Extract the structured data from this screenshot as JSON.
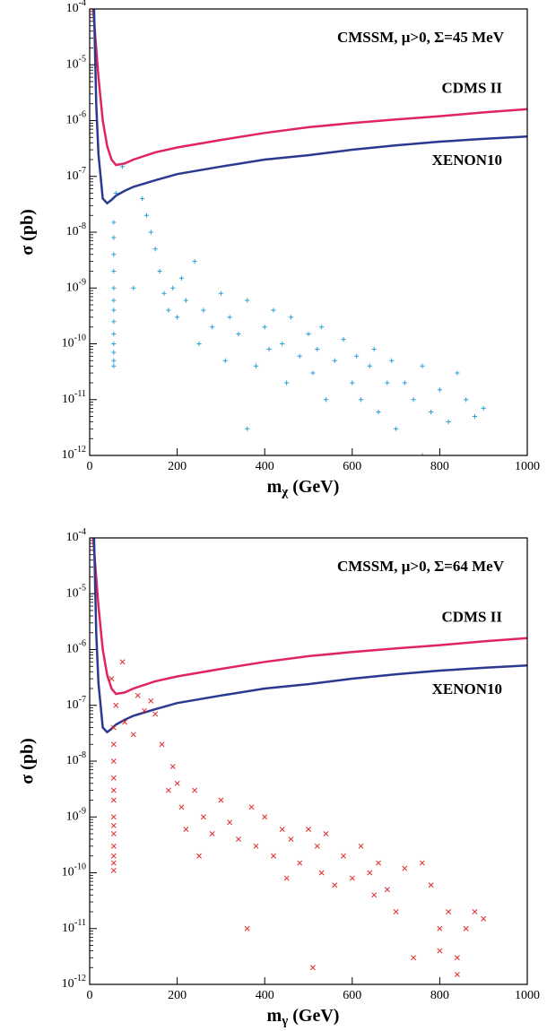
{
  "chart_data": [
    {
      "type": "scatter",
      "title": "CMSSM, μ>0, Σ=45 MeV",
      "xlabel": "mχ (GeV)",
      "ylabel": "σ (pb)",
      "log_y": true,
      "xlim": [
        0,
        1000
      ],
      "xticks": [
        0,
        200,
        400,
        600,
        800,
        1000
      ],
      "ylim": [
        1e-12,
        0.0001
      ],
      "yticks": [
        {
          "value": 1e-12,
          "label": "10-12"
        },
        {
          "value": 1e-11,
          "label": "10-11"
        },
        {
          "value": 1e-10,
          "label": "10-10"
        },
        {
          "value": 1e-09,
          "label": "10-9"
        },
        {
          "value": 1e-08,
          "label": "10-8"
        },
        {
          "value": 1e-07,
          "label": "10-7"
        },
        {
          "value": 1e-06,
          "label": "10-6"
        },
        {
          "value": 1e-05,
          "label": "10-5"
        },
        {
          "value": 0.0001,
          "label": "10-4"
        }
      ],
      "series": [
        {
          "name": "CDMS II",
          "kind": "line",
          "color": "#e0245e",
          "x": [
            8,
            20,
            30,
            40,
            50,
            60,
            80,
            100,
            150,
            200,
            300,
            400,
            500,
            600,
            700,
            800,
            900,
            1000
          ],
          "values": [
            0.0001,
            6e-06,
            1e-06,
            3.5e-07,
            2e-07,
            1.6e-07,
            1.7e-07,
            2e-07,
            2.7e-07,
            3.3e-07,
            4.5e-07,
            6e-07,
            7.6e-07,
            9e-07,
            1.05e-06,
            1.2e-06,
            1.4e-06,
            1.6e-06
          ]
        },
        {
          "name": "XENON10",
          "kind": "line",
          "color": "#2b3990",
          "x": [
            10,
            15,
            20,
            30,
            40,
            50,
            60,
            80,
            100,
            150,
            200,
            300,
            400,
            500,
            600,
            700,
            800,
            900,
            1000
          ],
          "values": [
            0.0001,
            2e-06,
            2.5e-07,
            4e-08,
            3.3e-08,
            3.8e-08,
            4.5e-08,
            5.5e-08,
            6.5e-08,
            8.5e-08,
            1.1e-07,
            1.5e-07,
            2e-07,
            2.4e-07,
            3e-07,
            3.6e-07,
            4.2e-07,
            4.7e-07,
            5.2e-07
          ]
        },
        {
          "kind": "points",
          "marker": "+",
          "color": "#2aa0d8",
          "x": [
            55,
            55,
            55,
            55,
            55,
            55,
            55,
            55,
            55,
            55,
            55,
            55,
            55,
            60,
            75,
            100,
            120,
            130,
            140,
            150,
            160,
            170,
            180,
            190,
            200,
            210,
            220,
            240,
            250,
            260,
            280,
            300,
            310,
            320,
            340,
            360,
            360,
            380,
            400,
            410,
            420,
            440,
            450,
            460,
            480,
            500,
            510,
            520,
            530,
            540,
            560,
            580,
            600,
            610,
            620,
            640,
            650,
            660,
            680,
            690,
            700,
            720,
            740,
            760,
            760,
            780,
            800,
            820,
            840,
            860,
            880,
            900
          ],
          "values": [
            1.5e-08,
            8e-09,
            4e-09,
            2e-09,
            1e-09,
            6e-10,
            4e-10,
            2.5e-10,
            1.5e-10,
            1e-10,
            7e-11,
            5e-11,
            4e-11,
            5e-08,
            1.5e-07,
            1e-09,
            4e-08,
            2e-08,
            1e-08,
            5e-09,
            2e-09,
            8e-10,
            4e-10,
            1e-09,
            3e-10,
            1.5e-09,
            6e-10,
            3e-09,
            1e-10,
            4e-10,
            2e-10,
            8e-10,
            5e-11,
            3e-10,
            1.5e-10,
            3e-12,
            6e-10,
            4e-11,
            2e-10,
            8e-11,
            4e-10,
            1e-10,
            2e-11,
            3e-10,
            6e-11,
            1.5e-10,
            3e-11,
            8e-11,
            2e-10,
            1e-11,
            5e-11,
            1.2e-10,
            2e-11,
            6e-11,
            1e-11,
            4e-11,
            8e-11,
            6e-12,
            2e-11,
            5e-11,
            3e-12,
            2e-11,
            1e-11,
            4e-11,
            1e-12,
            6e-12,
            1.5e-11,
            4e-12,
            3e-11,
            1e-11,
            5e-12,
            7e-12
          ]
        }
      ]
    },
    {
      "type": "scatter",
      "title": "CMSSM, μ>0, Σ=64 MeV",
      "xlabel": "mγ (GeV)",
      "ylabel": "σ (pb)",
      "log_y": true,
      "xlim": [
        0,
        1000
      ],
      "xticks": [
        0,
        200,
        400,
        600,
        800,
        1000
      ],
      "ylim": [
        1e-12,
        0.0001
      ],
      "yticks": [
        {
          "value": 1e-12,
          "label": "10-12"
        },
        {
          "value": 1e-11,
          "label": "10-11"
        },
        {
          "value": 1e-10,
          "label": "10-10"
        },
        {
          "value": 1e-09,
          "label": "10-9"
        },
        {
          "value": 1e-08,
          "label": "10-8"
        },
        {
          "value": 1e-07,
          "label": "10-7"
        },
        {
          "value": 1e-06,
          "label": "10-6"
        },
        {
          "value": 1e-05,
          "label": "10-5"
        },
        {
          "value": 0.0001,
          "label": "10-4"
        }
      ],
      "series": [
        {
          "name": "CDMS II",
          "kind": "line",
          "color": "#e0245e",
          "x": [
            8,
            20,
            30,
            40,
            50,
            60,
            80,
            100,
            150,
            200,
            300,
            400,
            500,
            600,
            700,
            800,
            900,
            1000
          ],
          "values": [
            0.0001,
            6e-06,
            1e-06,
            3.5e-07,
            2e-07,
            1.6e-07,
            1.7e-07,
            2e-07,
            2.7e-07,
            3.3e-07,
            4.5e-07,
            6e-07,
            7.6e-07,
            9e-07,
            1.05e-06,
            1.2e-06,
            1.4e-06,
            1.6e-06
          ]
        },
        {
          "name": "XENON10",
          "kind": "line",
          "color": "#2b3990",
          "x": [
            10,
            15,
            20,
            30,
            40,
            50,
            60,
            80,
            100,
            150,
            200,
            300,
            400,
            500,
            600,
            700,
            800,
            900,
            1000
          ],
          "values": [
            0.0001,
            2e-06,
            2.5e-07,
            4e-08,
            3.3e-08,
            3.8e-08,
            4.5e-08,
            5.5e-08,
            6.5e-08,
            8.5e-08,
            1.1e-07,
            1.5e-07,
            2e-07,
            2.4e-07,
            3e-07,
            3.6e-07,
            4.2e-07,
            4.7e-07,
            5.2e-07
          ]
        },
        {
          "kind": "points",
          "marker": "x",
          "color": "#e02a2a",
          "x": [
            55,
            55,
            55,
            55,
            55,
            55,
            55,
            55,
            55,
            55,
            55,
            55,
            55,
            50,
            60,
            75,
            80,
            100,
            110,
            125,
            140,
            150,
            165,
            180,
            190,
            200,
            210,
            220,
            240,
            250,
            260,
            280,
            300,
            320,
            340,
            360,
            370,
            380,
            400,
            420,
            440,
            450,
            460,
            480,
            500,
            510,
            520,
            530,
            540,
            560,
            580,
            600,
            620,
            640,
            650,
            660,
            680,
            700,
            720,
            740,
            760,
            780,
            800,
            800,
            820,
            840,
            840,
            860,
            880,
            900
          ],
          "values": [
            4e-08,
            2e-08,
            1e-08,
            5e-09,
            3e-09,
            2e-09,
            1e-09,
            7e-10,
            5e-10,
            3e-10,
            2e-10,
            1.5e-10,
            1.1e-10,
            3e-07,
            1e-07,
            6e-07,
            5e-08,
            3e-08,
            1.5e-07,
            8e-08,
            1.2e-07,
            7e-08,
            2e-08,
            3e-09,
            8e-09,
            4e-09,
            1.5e-09,
            6e-10,
            3e-09,
            2e-10,
            1e-09,
            5e-10,
            2e-09,
            8e-10,
            4e-10,
            1e-11,
            1.5e-09,
            3e-10,
            1e-09,
            2e-10,
            6e-10,
            8e-11,
            4e-10,
            1.5e-10,
            6e-10,
            2e-12,
            3e-10,
            1e-10,
            5e-10,
            6e-11,
            2e-10,
            8e-11,
            3e-10,
            1e-10,
            4e-11,
            1.5e-10,
            5e-11,
            2e-11,
            1.2e-10,
            3e-12,
            1.5e-10,
            6e-11,
            1e-11,
            4e-12,
            2e-11,
            3e-12,
            1.5e-12,
            1e-11,
            2e-11,
            1.5e-11
          ]
        }
      ]
    }
  ]
}
